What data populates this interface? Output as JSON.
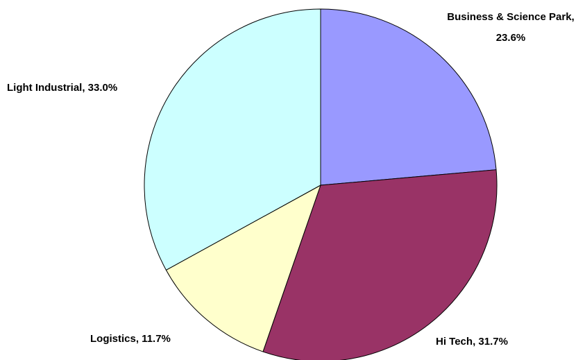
{
  "chart_data": {
    "type": "pie",
    "values": [
      23.6,
      31.7,
      11.7,
      33.0
    ],
    "value_labels": [
      "Business & Science Park, 23.6%",
      "Hi Tech, 31.7%",
      "Logistics, 11.7%",
      "Light Industrial, 33.0%"
    ],
    "colors": [
      "#9999ff",
      "#993366",
      "#ffffcc",
      "#ccffff"
    ]
  }
}
